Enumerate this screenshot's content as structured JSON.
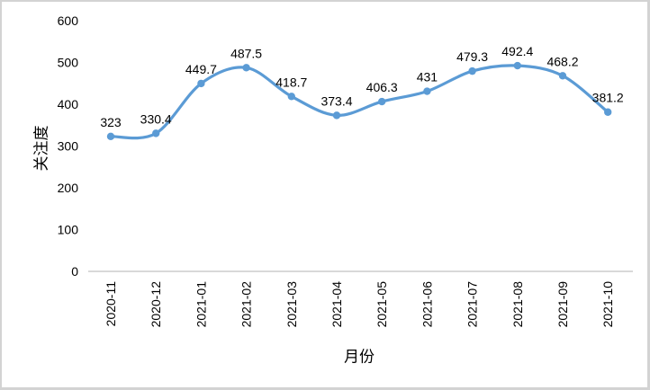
{
  "figure": {
    "background": "#ffffff",
    "border_color": "#d3d3d3"
  },
  "chart_data": {
    "type": "line",
    "title": "",
    "xlabel": "月份",
    "ylabel": "关注度",
    "categories": [
      "2020-11",
      "2020-12",
      "2021-01",
      "2021-02",
      "2021-03",
      "2021-04",
      "2021-05",
      "2021-06",
      "2021-07",
      "2021-08",
      "2021-09",
      "2021-10"
    ],
    "values": [
      323,
      330.4,
      449.7,
      487.5,
      418.7,
      373.4,
      406.3,
      431,
      479.3,
      492.4,
      468.2,
      381.2
    ],
    "data_labels": [
      "323",
      "330.4",
      "449.7",
      "487.5",
      "418.7",
      "373.4",
      "406.3",
      "431",
      "479.3",
      "492.4",
      "468.2",
      "381.2"
    ],
    "ylim": [
      0,
      600
    ],
    "yticks": [
      0,
      100,
      200,
      300,
      400,
      500,
      600
    ],
    "grid": false,
    "legend": "none",
    "smooth": true,
    "marker": "circle",
    "line_color": "#5b9bd5",
    "label_color": "#000000",
    "axis_line_color": "#d9d9d9",
    "x_tick_rotation_deg": -90
  }
}
